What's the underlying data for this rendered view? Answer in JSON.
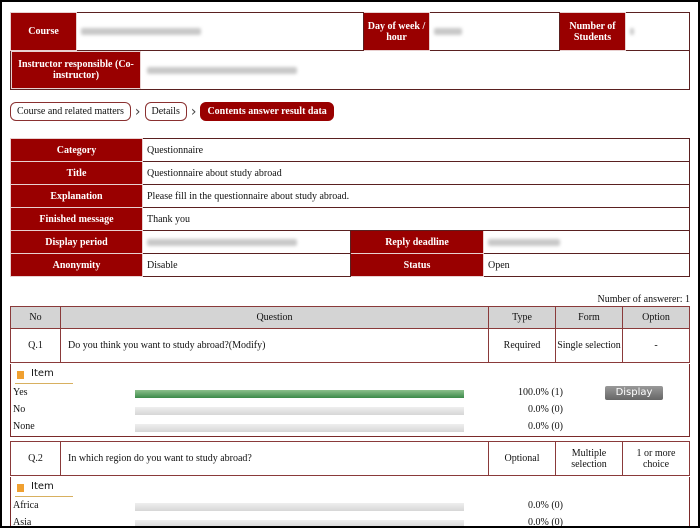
{
  "course_info": {
    "course_label": "Course",
    "day_label": "Day of week / hour",
    "students_label": "Number of Students",
    "instructor_label": "Instructor responsible (Co-instructor)"
  },
  "breadcrumb": [
    "Course and related matters",
    "Details",
    "Contents answer result data"
  ],
  "info": {
    "category_label": "Category",
    "category": "Questionnaire",
    "title_label": "Title",
    "title": "Questionnaire about study abroad",
    "explanation_label": "Explanation",
    "explanation": "Please fill in the questionnaire about study abroad.",
    "finished_label": "Finished message",
    "finished": "Thank you",
    "display_period_label": "Display period",
    "reply_deadline_label": "Reply deadline",
    "anonymity_label": "Anonymity",
    "anonymity": "Disable",
    "status_label": "Status",
    "status": "Open"
  },
  "answerers": "Number of answerer: 1",
  "columns": [
    "No",
    "Question",
    "Type",
    "Form",
    "Option"
  ],
  "item_label": "Item",
  "display_button": "Display",
  "bar_color": "#3c8a4a",
  "questions": [
    {
      "no": "Q.1",
      "question": "Do you think you want to study abroad?(Modify)",
      "type": "Required",
      "form": "Single selection",
      "option": "-",
      "items": [
        {
          "label": "Yes",
          "percent": 100,
          "text": "100.0% (1)"
        },
        {
          "label": "No",
          "percent": 0,
          "text": "0.0% (0)"
        },
        {
          "label": "None",
          "percent": 0,
          "text": "0.0% (0)"
        }
      ]
    },
    {
      "no": "Q.2",
      "question": "In which region do you want to study abroad?",
      "type": "Optional",
      "form": "Multiple selection",
      "option": "1 or more choice",
      "items": [
        {
          "label": "Africa",
          "percent": 0,
          "text": "0.0% (0)"
        },
        {
          "label": "Asia",
          "percent": 0,
          "text": "0.0% (0)"
        }
      ]
    }
  ]
}
